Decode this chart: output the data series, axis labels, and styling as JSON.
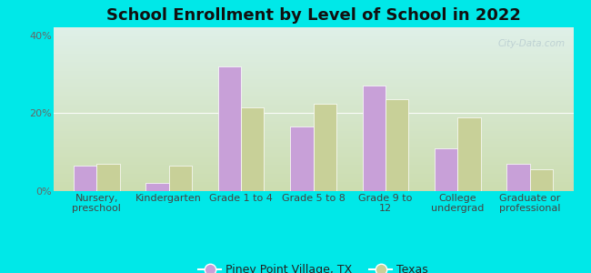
{
  "title": "School Enrollment by Level of School in 2022",
  "categories": [
    "Nursery,\npreschool",
    "Kindergarten",
    "Grade 1 to 4",
    "Grade 5 to 8",
    "Grade 9 to\n12",
    "College\nundergrad",
    "Graduate or\nprofessional"
  ],
  "city_values": [
    6.5,
    2.0,
    32.0,
    16.5,
    27.0,
    11.0,
    7.0
  ],
  "state_values": [
    7.0,
    6.5,
    21.5,
    22.5,
    23.5,
    19.0,
    5.5
  ],
  "city_color": "#c8a0d8",
  "state_color": "#c8d098",
  "city_label": "Piney Point Village, TX",
  "state_label": "Texas",
  "ylim": [
    0,
    42
  ],
  "yticks": [
    0,
    20,
    40
  ],
  "ytick_labels": [
    "0%",
    "20%",
    "40%"
  ],
  "background_outer": "#00e8e8",
  "background_inner_top": "#dff0e8",
  "background_inner_bottom": "#ccddb0",
  "watermark": "City-Data.com",
  "bar_width": 0.32,
  "title_fontsize": 13,
  "tick_fontsize": 8,
  "legend_fontsize": 9
}
